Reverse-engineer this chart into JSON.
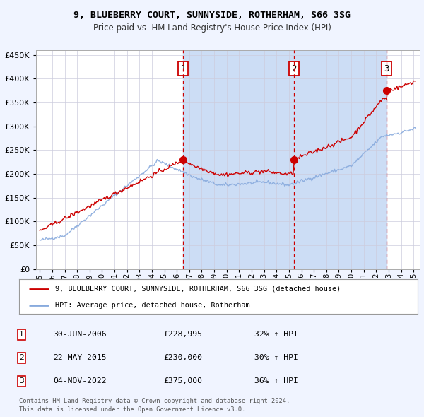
{
  "title": "9, BLUEBERRY COURT, SUNNYSIDE, ROTHERHAM, S66 3SG",
  "subtitle": "Price paid vs. HM Land Registry's House Price Index (HPI)",
  "legend_red": "9, BLUEBERRY COURT, SUNNYSIDE, ROTHERHAM, S66 3SG (detached house)",
  "legend_blue": "HPI: Average price, detached house, Rotherham",
  "transactions": [
    {
      "label": "1",
      "date_str": "30-JUN-2006",
      "date_x": 2006.5,
      "price": 228995,
      "pct": "32%"
    },
    {
      "label": "2",
      "date_str": "22-MAY-2015",
      "date_x": 2015.38,
      "price": 230000,
      "pct": "30%"
    },
    {
      "label": "3",
      "date_str": "04-NOV-2022",
      "date_x": 2022.84,
      "price": 375000,
      "pct": "36%"
    }
  ],
  "footer1": "Contains HM Land Registry data © Crown copyright and database right 2024.",
  "footer2": "This data is licensed under the Open Government Licence v3.0.",
  "bg_color": "#f0f4ff",
  "red_color": "#cc0000",
  "blue_color": "#88aadd",
  "shade_color": "#ccddf5",
  "ylim": [
    0,
    460000
  ],
  "yticks": [
    0,
    50000,
    100000,
    150000,
    200000,
    250000,
    300000,
    350000,
    400000,
    450000
  ],
  "xlim_start": 1994.7,
  "xlim_end": 2025.5,
  "xtick_start": 1995,
  "xtick_end": 2026
}
